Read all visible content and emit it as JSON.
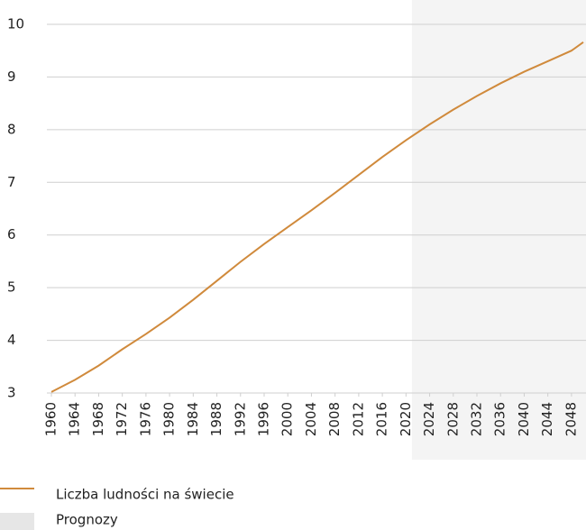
{
  "chart_data": {
    "type": "line",
    "x": [
      1960,
      1964,
      1968,
      1972,
      1976,
      1980,
      1984,
      1988,
      1992,
      1996,
      2000,
      2004,
      2008,
      2012,
      2016,
      2020,
      2024,
      2028,
      2032,
      2036,
      2040,
      2044,
      2048,
      2050
    ],
    "series": [
      {
        "name": "Liczba ludności na świecie",
        "color": "#d08a3c",
        "values": [
          3.02,
          3.25,
          3.52,
          3.83,
          4.12,
          4.43,
          4.77,
          5.13,
          5.49,
          5.83,
          6.15,
          6.47,
          6.8,
          7.14,
          7.48,
          7.8,
          8.1,
          8.38,
          8.64,
          8.88,
          9.1,
          9.3,
          9.5,
          9.66
        ]
      }
    ],
    "forecast": {
      "name": "Prognozy",
      "color": "#f4f4f4",
      "range": [
        2021,
        2050
      ]
    },
    "xlim": [
      1960,
      2050
    ],
    "xticks": [
      1960,
      1964,
      1968,
      1972,
      1976,
      1980,
      1984,
      1988,
      1992,
      1996,
      2000,
      2004,
      2008,
      2012,
      2016,
      2020,
      2024,
      2028,
      2032,
      2036,
      2040,
      2044,
      2048
    ],
    "ylim": [
      3,
      10
    ],
    "yticks": [
      3,
      4,
      5,
      6,
      7,
      8,
      9,
      10
    ],
    "grid": true
  }
}
